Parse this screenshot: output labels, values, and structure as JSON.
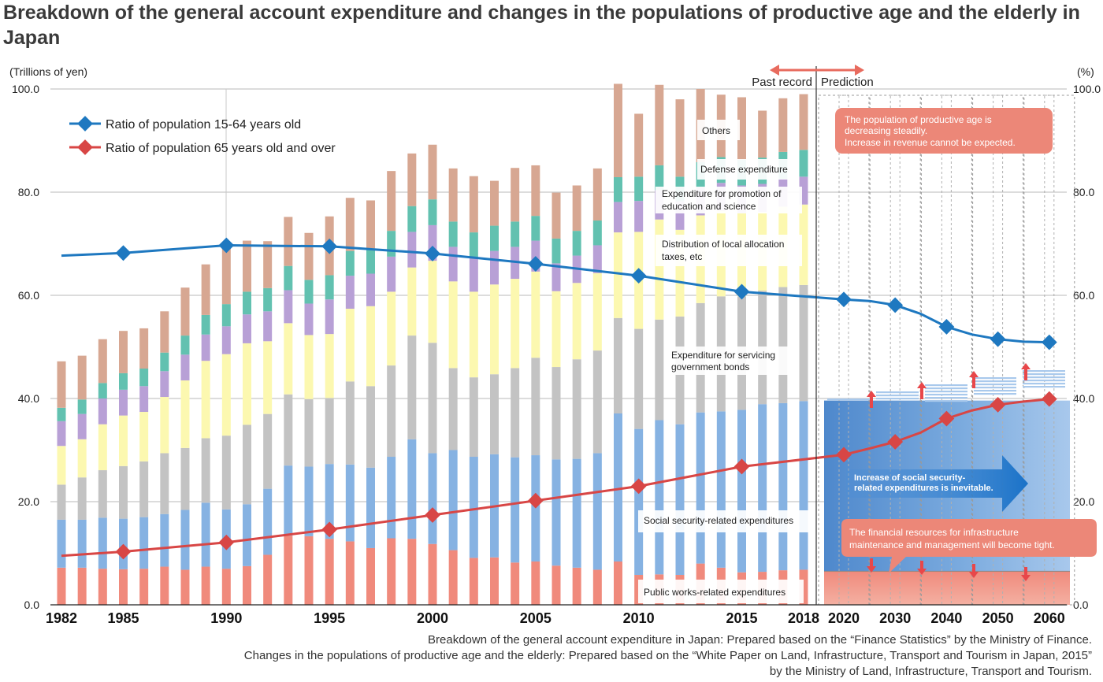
{
  "title": "Breakdown of the general account expenditure and changes in the populations of productive age and the elderly in Japan",
  "axis": {
    "left_unit": "(Trillions of yen)",
    "right_unit": "(%)",
    "yticks_left": [
      "0.0",
      "20.0",
      "40.0",
      "60.0",
      "80.0",
      "100.0"
    ],
    "yticks_right": [
      "0.0",
      "20.0",
      "40.0",
      "60.0",
      "80.0",
      "100.0"
    ]
  },
  "period_labels": {
    "past": "Past record",
    "prediction": "Prediction"
  },
  "legend": {
    "working": "Ratio of population 15-64 years old",
    "elderly": "Ratio of population 65 years old and over"
  },
  "callouts": {
    "top": [
      "The population of productive age is",
      "decreasing steadily.",
      "Increase in revenue cannot be expected."
    ],
    "middle": [
      "Increase of social security-",
      "related expenditures is inevitable."
    ],
    "bottom": [
      "The financial resources for infrastructure",
      "maintenance and management will become tight."
    ]
  },
  "sources": [
    "Breakdown of the general account expenditure in Japan: Prepared based on the “Finance Statistics” by the Ministry of Finance.",
    "Changes in the populations of productive age and the elderly: Prepared based on the “White Paper on Land, Infrastructure, Transport and Tourism in Japan, 2015”",
    "by the Ministry of Land, Infrastructure, Transport and Tourism."
  ],
  "colors": {
    "public_works": "#f08a7c",
    "social_security": "#86b2e2",
    "bonds": "#c3c3c3",
    "local_allocation": "#fcf8b0",
    "education": "#b8a0d6",
    "defense": "#62c1b0",
    "others": "#d7a792",
    "working_line": "#1e78c0",
    "elderly_line": "#d84645",
    "callout": "#ec8778"
  },
  "chart_data": {
    "type": "bar",
    "stacked": true,
    "title": "Breakdown of the general account expenditure and changes in the populations of productive age and the elderly in Japan",
    "ylabel": "Trillions of yen",
    "ylabel_right": "%",
    "ylim": [
      0,
      100
    ],
    "ylim_right": [
      0,
      100
    ],
    "categories": [
      1982,
      1983,
      1984,
      1985,
      1986,
      1987,
      1988,
      1989,
      1990,
      1991,
      1992,
      1993,
      1994,
      1995,
      1996,
      1997,
      1998,
      1999,
      2000,
      2001,
      2002,
      2003,
      2004,
      2005,
      2006,
      2007,
      2008,
      2009,
      2010,
      2011,
      2012,
      2013,
      2014,
      2015,
      2016,
      2017,
      2018
    ],
    "tick_labels": [
      "1982",
      "1985",
      "1990",
      "1995",
      "2000",
      "2005",
      "2010",
      "2015",
      "2018"
    ],
    "series": [
      {
        "name": "Public works-related expenditures",
        "key": "public_works",
        "values": [
          7.2,
          7.2,
          7.0,
          6.9,
          7.0,
          7.4,
          6.8,
          7.4,
          7.0,
          7.5,
          9.7,
          13.4,
          13.3,
          12.8,
          12.3,
          11.0,
          12.9,
          12.8,
          11.8,
          10.6,
          9.1,
          9.2,
          8.2,
          8.4,
          7.6,
          7.2,
          6.8,
          8.4,
          5.8,
          5.9,
          5.8,
          8.0,
          7.2,
          6.3,
          6.4,
          6.7,
          6.8
        ]
      },
      {
        "name": "Social security-related expenditures",
        "key": "social_security",
        "values": [
          9.3,
          9.3,
          9.9,
          9.8,
          10.0,
          10.2,
          11.6,
          12.4,
          11.5,
          12.0,
          12.8,
          13.6,
          13.5,
          14.5,
          14.9,
          15.6,
          15.8,
          19.3,
          17.6,
          19.4,
          19.6,
          20.0,
          20.4,
          20.6,
          20.6,
          21.1,
          22.6,
          28.7,
          28.3,
          29.9,
          29.2,
          29.3,
          30.3,
          31.5,
          32.5,
          32.4,
          32.7
        ]
      },
      {
        "name": "Expenditure for servicing government bonds",
        "key": "bonds",
        "values": [
          6.8,
          8.2,
          9.2,
          10.2,
          10.8,
          11.8,
          12.0,
          12.5,
          14.3,
          15.4,
          14.5,
          13.8,
          13.1,
          12.8,
          16.1,
          15.8,
          17.7,
          20.1,
          21.4,
          15.9,
          15.4,
          15.5,
          17.3,
          18.9,
          17.9,
          19.3,
          19.9,
          18.5,
          19.4,
          19.5,
          20.9,
          21.2,
          22.3,
          22.0,
          22.0,
          22.5,
          22.5
        ]
      },
      {
        "name": "Distribution of local allocation taxes, etc",
        "key": "local_allocation",
        "values": [
          7.5,
          7.4,
          8.9,
          9.8,
          9.6,
          10.9,
          13.1,
          15.0,
          15.8,
          15.8,
          14.1,
          13.8,
          12.4,
          12.4,
          14.1,
          15.5,
          14.3,
          13.2,
          15.9,
          16.8,
          16.6,
          17.4,
          17.3,
          16.7,
          14.7,
          14.8,
          15.0,
          16.6,
          18.8,
          19.4,
          16.8,
          17.0,
          16.6,
          16.1,
          15.3,
          15.6,
          15.6
        ]
      },
      {
        "name": "Expenditure for promotion of education and science",
        "key": "education",
        "values": [
          4.8,
          4.9,
          5.0,
          5.0,
          5.0,
          5.0,
          5.0,
          5.1,
          5.4,
          5.6,
          5.8,
          6.4,
          6.1,
          6.7,
          6.4,
          6.3,
          6.8,
          6.9,
          6.9,
          6.7,
          6.6,
          6.5,
          6.2,
          6.0,
          5.4,
          5.3,
          5.4,
          5.9,
          6.0,
          5.7,
          5.5,
          5.4,
          5.4,
          5.4,
          5.4,
          5.4,
          5.4
        ]
      },
      {
        "name": "Defense expenditure",
        "key": "defense",
        "values": [
          2.6,
          2.8,
          3.0,
          3.2,
          3.4,
          3.6,
          3.7,
          3.8,
          4.3,
          4.4,
          4.5,
          4.7,
          4.6,
          4.7,
          4.8,
          4.9,
          5.0,
          5.0,
          5.0,
          4.9,
          4.9,
          4.9,
          4.9,
          4.8,
          4.8,
          4.8,
          4.8,
          4.8,
          4.7,
          4.8,
          4.8,
          4.9,
          5.0,
          5.0,
          5.1,
          5.2,
          5.2
        ]
      },
      {
        "name": "Others",
        "key": "others",
        "values": [
          9.0,
          8.5,
          8.5,
          8.2,
          7.8,
          8.0,
          9.3,
          9.8,
          11.3,
          9.9,
          9.1,
          9.5,
          9.1,
          11.4,
          10.3,
          9.3,
          11.6,
          10.2,
          10.6,
          10.3,
          10.9,
          8.7,
          10.4,
          9.8,
          8.9,
          8.8,
          10.1,
          18.1,
          12.2,
          15.6,
          15.0,
          14.2,
          12.1,
          12.1,
          9.1,
          10.4,
          10.8
        ]
      }
    ],
    "lines": [
      {
        "name": "Ratio of population 15-64 years old",
        "axis": "right",
        "x": [
          1982,
          1985,
          1990,
          1995,
          2000,
          2005,
          2010,
          2015,
          2020,
          2025,
          2030,
          2035,
          2040,
          2045,
          2050,
          2055,
          2060
        ],
        "y": [
          67.7,
          68.2,
          69.7,
          69.5,
          68.1,
          66.1,
          63.8,
          60.7,
          59.2,
          58.9,
          58.1,
          56.4,
          53.9,
          52.4,
          51.5,
          51.0,
          50.9
        ],
        "markers": [
          1985,
          1990,
          1995,
          2000,
          2005,
          2010,
          2015,
          2020,
          2030,
          2040,
          2050,
          2060
        ]
      },
      {
        "name": "Ratio of population 65 years old and over",
        "axis": "right",
        "x": [
          1982,
          1985,
          1990,
          1995,
          2000,
          2005,
          2010,
          2015,
          2020,
          2025,
          2030,
          2035,
          2040,
          2045,
          2050,
          2055,
          2060
        ],
        "y": [
          9.5,
          10.3,
          12.1,
          14.6,
          17.4,
          20.2,
          23.0,
          26.8,
          29.1,
          30.3,
          31.6,
          33.4,
          36.1,
          37.7,
          38.8,
          39.4,
          39.9
        ],
        "markers": [
          1985,
          1990,
          1995,
          2000,
          2005,
          2010,
          2015,
          2020,
          2030,
          2040,
          2050,
          2060
        ]
      }
    ],
    "prediction_years": [
      2020,
      2030,
      2040,
      2050,
      2060
    ],
    "annotations": [
      "Past record",
      "Prediction"
    ]
  }
}
